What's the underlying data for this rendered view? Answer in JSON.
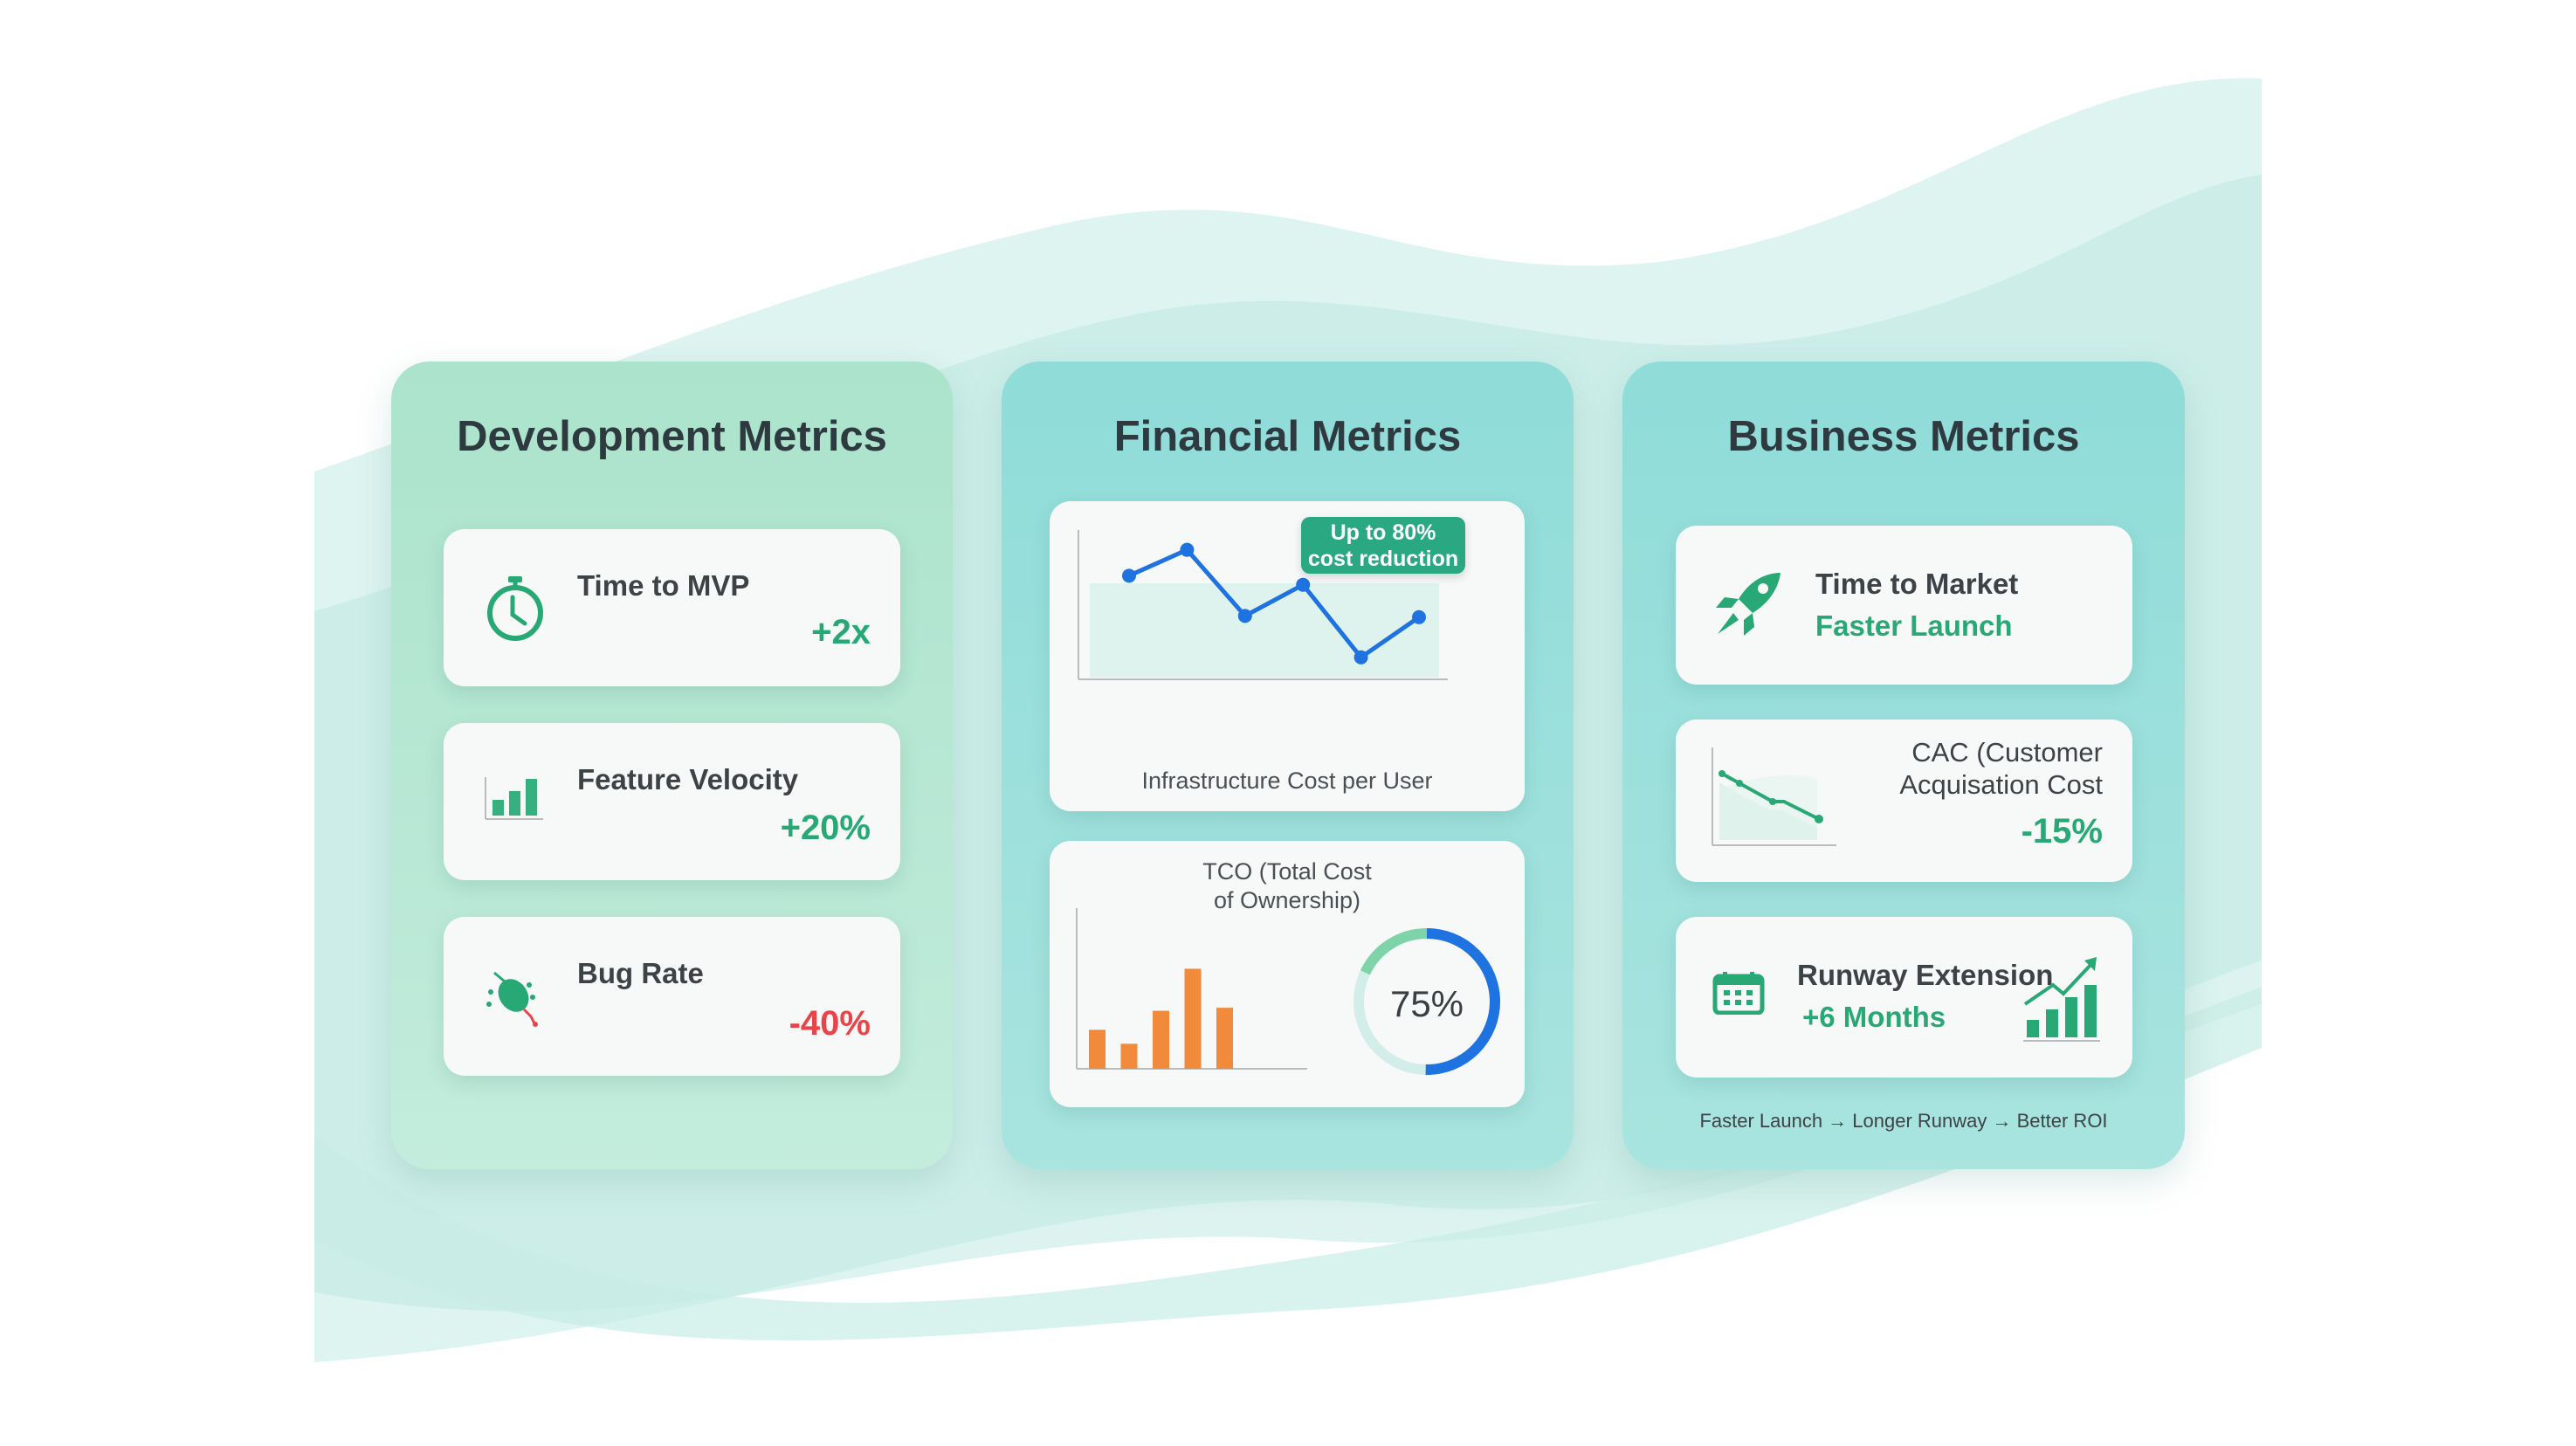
{
  "colors": {
    "accent_green": "#27a874",
    "negative_red": "#e8454a",
    "line_blue": "#1e73e0",
    "bar_orange": "#f28a3c",
    "badge_green": "#2aa882"
  },
  "development": {
    "title": "Development Metrics",
    "cards": [
      {
        "label": "Time to MVP",
        "value": "+2x",
        "icon": "stopwatch-icon"
      },
      {
        "label": "Feature Velocity",
        "value": "+20%",
        "icon": "bar-chart-icon"
      },
      {
        "label": "Bug Rate",
        "value": "-40%",
        "icon": "bug-icon"
      }
    ]
  },
  "financial": {
    "title": "Financial Metrics",
    "badge_line1": "Up to 80%",
    "badge_line2": "cost reduction",
    "tco_line1": "TCO (Total Cost",
    "tco_line2": "of Ownership)",
    "donut_label": "75%"
  },
  "business": {
    "title": "Business Metrics",
    "cards": [
      {
        "label": "Time to Market",
        "value": "Faster Launch",
        "icon": "rocket-icon"
      },
      {
        "label_line1": "CAC (Customer",
        "label_line2": "Acquisation Cost",
        "value": "-15%",
        "icon": "declining-line-chart-icon"
      },
      {
        "label": "Runway Extension",
        "value": "+6 Months",
        "icon": "calendar-icon",
        "icon2": "growth-chart-icon"
      }
    ],
    "footer": "Faster Launch → Longer Runway → Better ROI"
  },
  "chart_data": [
    {
      "type": "line",
      "title": "",
      "xlabel": "Infrastructure Cost per User",
      "ylabel": "",
      "x": [
        1,
        2,
        3,
        4,
        5,
        6
      ],
      "values": [
        8.0,
        10.0,
        4.9,
        7.3,
        1.7,
        4.8
      ],
      "ylim": [
        0,
        12
      ],
      "grid": false
    },
    {
      "type": "bar",
      "title": "",
      "xlabel": "",
      "ylabel": "",
      "categories": [
        "1",
        "2",
        "3",
        "4",
        "5"
      ],
      "values": [
        3.9,
        2.5,
        5.8,
        10.0,
        6.1
      ],
      "ylim": [
        0,
        11
      ],
      "grid": false
    },
    {
      "type": "pie",
      "subtype": "donut",
      "values": [
        75,
        25
      ],
      "center_label": "75%"
    }
  ]
}
